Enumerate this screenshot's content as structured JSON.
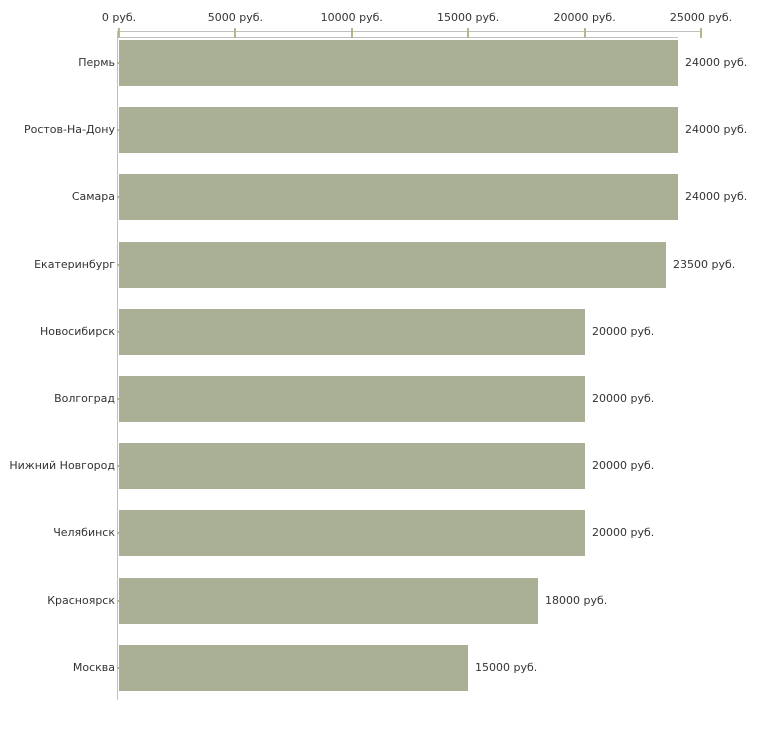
{
  "chart_data": {
    "type": "bar",
    "orientation": "horizontal",
    "title": "",
    "xlabel": "",
    "ylabel": "",
    "unit": "руб.",
    "categories": [
      "Пермь",
      "Ростов-На-Дону",
      "Самара",
      "Екатеринбург",
      "Новосибирск",
      "Волгоград",
      "Нижний Новгород",
      "Челябинск",
      "Красноярск",
      "Москва"
    ],
    "values": [
      24000,
      24000,
      24000,
      23500,
      20000,
      20000,
      20000,
      20000,
      18000,
      15000
    ],
    "value_labels": [
      "24000 руб.",
      "24000 руб.",
      "24000 руб.",
      "23500 руб.",
      "20000 руб.",
      "20000 руб.",
      "20000 руб.",
      "20000 руб.",
      "18000 руб.",
      "15000 руб."
    ],
    "x_tick_values": [
      0,
      5000,
      10000,
      15000,
      20000,
      25000
    ],
    "x_tick_labels": [
      "0 руб.",
      "5000 руб.",
      "10000 руб.",
      "15000 руб.",
      "20000 руб.",
      "25000 руб."
    ],
    "xlim": [
      0,
      25000
    ],
    "axis_position": "top",
    "grid": false,
    "legend": false,
    "bar_color": "#aab096",
    "axis_color": "#c0c0c0",
    "tick_color": "#b5b78f",
    "text_color": "#333333",
    "background_color": "#ffffff"
  }
}
